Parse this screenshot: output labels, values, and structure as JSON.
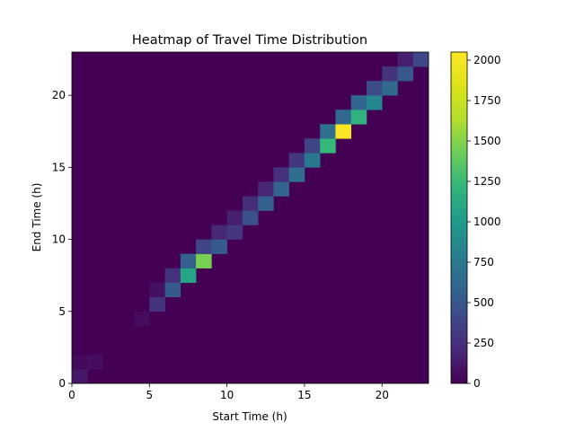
{
  "chart_data": {
    "type": "heatmap",
    "title": "Heatmap of Travel Time Distribution",
    "xlabel": "Start Time (h)",
    "ylabel": "End Time (h)",
    "xlim": [
      0,
      23
    ],
    "ylim": [
      0,
      23
    ],
    "x_ticks": [
      0,
      5,
      10,
      15,
      20
    ],
    "y_ticks": [
      0,
      5,
      10,
      15,
      20
    ],
    "colormap": "viridis",
    "value_range": [
      0,
      2050
    ],
    "colorbar_ticks": [
      0,
      250,
      500,
      750,
      1000,
      1250,
      1500,
      1750,
      2000
    ],
    "background_value": 0,
    "cells": [
      {
        "x": 0,
        "y": 0,
        "value": 120
      },
      {
        "x": 0,
        "y": 1,
        "value": 40
      },
      {
        "x": 1,
        "y": 1,
        "value": 60
      },
      {
        "x": 4,
        "y": 4,
        "value": 50
      },
      {
        "x": 5,
        "y": 5,
        "value": 280
      },
      {
        "x": 5,
        "y": 6,
        "value": 80
      },
      {
        "x": 6,
        "y": 6,
        "value": 520
      },
      {
        "x": 6,
        "y": 7,
        "value": 260
      },
      {
        "x": 7,
        "y": 7,
        "value": 1080
      },
      {
        "x": 7,
        "y": 8,
        "value": 560
      },
      {
        "x": 8,
        "y": 8,
        "value": 1460
      },
      {
        "x": 8,
        "y": 9,
        "value": 380
      },
      {
        "x": 9,
        "y": 9,
        "value": 520
      },
      {
        "x": 9,
        "y": 10,
        "value": 200
      },
      {
        "x": 10,
        "y": 10,
        "value": 300
      },
      {
        "x": 10,
        "y": 11,
        "value": 160
      },
      {
        "x": 11,
        "y": 11,
        "value": 460
      },
      {
        "x": 11,
        "y": 12,
        "value": 240
      },
      {
        "x": 12,
        "y": 12,
        "value": 560
      },
      {
        "x": 12,
        "y": 13,
        "value": 200
      },
      {
        "x": 13,
        "y": 13,
        "value": 590
      },
      {
        "x": 13,
        "y": 14,
        "value": 260
      },
      {
        "x": 14,
        "y": 14,
        "value": 660
      },
      {
        "x": 14,
        "y": 15,
        "value": 300
      },
      {
        "x": 15,
        "y": 15,
        "value": 740
      },
      {
        "x": 15,
        "y": 16,
        "value": 380
      },
      {
        "x": 16,
        "y": 16,
        "value": 1230
      },
      {
        "x": 16,
        "y": 17,
        "value": 680
      },
      {
        "x": 17,
        "y": 17,
        "value": 2050
      },
      {
        "x": 17,
        "y": 18,
        "value": 620
      },
      {
        "x": 18,
        "y": 18,
        "value": 1180
      },
      {
        "x": 18,
        "y": 19,
        "value": 610
      },
      {
        "x": 19,
        "y": 19,
        "value": 850
      },
      {
        "x": 19,
        "y": 20,
        "value": 420
      },
      {
        "x": 20,
        "y": 20,
        "value": 640
      },
      {
        "x": 20,
        "y": 21,
        "value": 280
      },
      {
        "x": 21,
        "y": 21,
        "value": 500
      },
      {
        "x": 21,
        "y": 22,
        "value": 160
      },
      {
        "x": 22,
        "y": 22,
        "value": 400
      }
    ]
  }
}
